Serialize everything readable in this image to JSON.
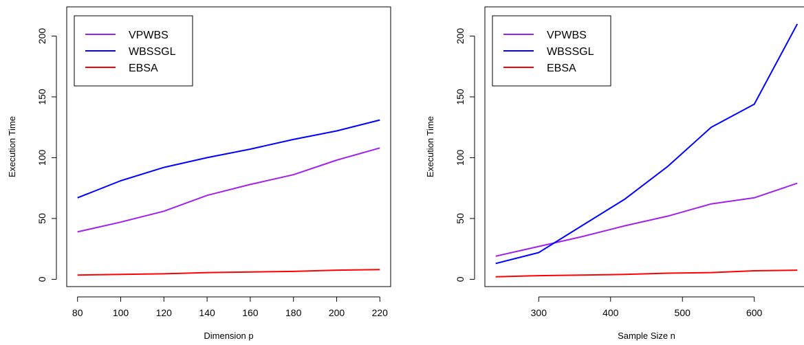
{
  "chart_data": [
    {
      "type": "line",
      "title": "",
      "xlabel": "Dimension p",
      "ylabel": "Execution Time",
      "xlim": [
        75,
        225
      ],
      "ylim": [
        -6,
        224
      ],
      "xticks": [
        80,
        100,
        120,
        140,
        160,
        180,
        200,
        220
      ],
      "yticks": [
        0,
        50,
        100,
        150,
        200
      ],
      "grid": false,
      "legend": "top-left",
      "x": [
        80,
        100,
        120,
        140,
        160,
        180,
        200,
        220
      ],
      "series": [
        {
          "name": "VPWBS",
          "color": "#a020f0",
          "values": [
            39,
            47,
            56,
            69,
            78,
            86,
            98,
            108
          ]
        },
        {
          "name": "WBSSGL",
          "color": "#0000ff",
          "values": [
            67,
            81,
            92,
            100,
            107,
            115,
            122,
            131
          ]
        },
        {
          "name": "EBSA",
          "color": "#ff0000",
          "values": [
            3.5,
            4,
            4.5,
            5.5,
            6,
            6.5,
            7.5,
            8
          ]
        }
      ]
    },
    {
      "type": "line",
      "title": "",
      "xlabel": "Sample Size n",
      "ylabel": "Execution Time",
      "xlim": [
        225,
        675
      ],
      "ylim": [
        -6,
        224
      ],
      "xticks": [
        300,
        400,
        500,
        600
      ],
      "yticks": [
        0,
        50,
        100,
        150,
        200
      ],
      "grid": false,
      "legend": "top-left",
      "x": [
        240,
        300,
        360,
        420,
        480,
        540,
        600,
        660
      ],
      "series": [
        {
          "name": "VPWBS",
          "color": "#a020f0",
          "values": [
            19,
            27,
            35,
            44,
            52,
            62,
            67,
            79
          ]
        },
        {
          "name": "WBSSGL",
          "color": "#0000ff",
          "values": [
            13,
            22,
            44,
            66,
            93,
            125,
            144,
            210
          ]
        },
        {
          "name": "EBSA",
          "color": "#ff0000",
          "values": [
            2,
            3,
            3.5,
            4,
            5,
            5.5,
            7,
            7.5
          ]
        }
      ]
    }
  ]
}
